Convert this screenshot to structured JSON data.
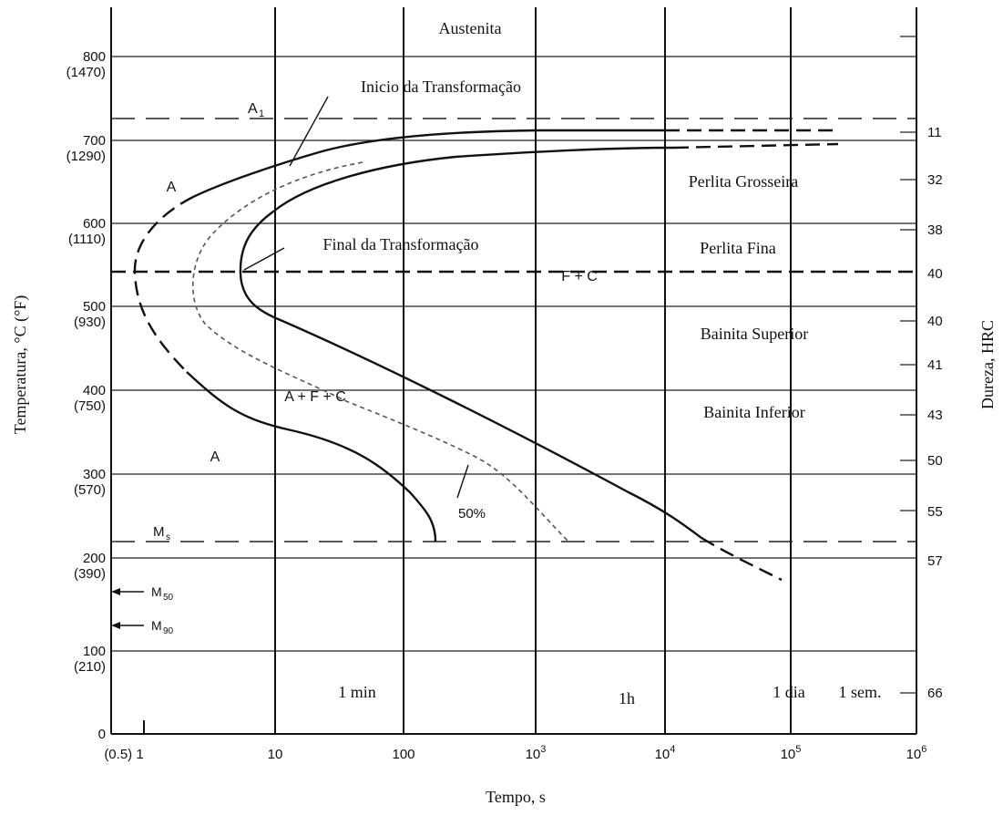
{
  "regions": {
    "austenite_top": "Austenita",
    "a_upper": "A",
    "a_lower": "A",
    "a_f_c": "A + F + C",
    "f_c": "F + C",
    "percent_50": "50%",
    "start_transformation": "Inicio da Transformação",
    "end_transformation": "Final da Transformação",
    "coarse_pearlite": "Perlita Grosseira",
    "fine_pearlite": "Perlita Fina",
    "upper_bainite": "Bainita Superior",
    "lower_bainite": "Bainita Inferior"
  },
  "critical_lines": {
    "a1_main": "A",
    "a1_sub": "1",
    "ms_main": "M",
    "ms_sub": "s",
    "m50_main": "M",
    "m50_sub": "50",
    "m90_main": "M",
    "m90_sub": "90"
  },
  "time_markers": {
    "minute": "1 min",
    "hour": "1h",
    "day": "1 dia",
    "week": "1 sem."
  },
  "axes": {
    "x_title": "Tempo, s",
    "y_left_title": "Temperatura, °C (°F)",
    "y_right_title": "Dureza, HRC",
    "x_ticks": [
      {
        "base": "(0.5) 1",
        "exp": ""
      },
      {
        "base": "10",
        "exp": ""
      },
      {
        "base": "100",
        "exp": ""
      },
      {
        "base": "10",
        "exp": "3"
      },
      {
        "base": "10",
        "exp": "4"
      },
      {
        "base": "10",
        "exp": "5"
      },
      {
        "base": "10",
        "exp": "6"
      }
    ],
    "y_ticks": [
      {
        "c": "800",
        "f": "(1470)"
      },
      {
        "c": "700",
        "f": "(1290)"
      },
      {
        "c": "600",
        "f": "(1110)"
      },
      {
        "c": "500",
        "f": "(930)"
      },
      {
        "c": "400",
        "f": "(750)"
      },
      {
        "c": "300",
        "f": "(570)"
      },
      {
        "c": "200",
        "f": "(390)"
      },
      {
        "c": "100",
        "f": "(210)"
      },
      {
        "c": "0",
        "f": ""
      }
    ],
    "hrc_ticks": [
      "11",
      "32",
      "38",
      "40",
      "40",
      "41",
      "43",
      "50",
      "55",
      "57",
      "66"
    ]
  },
  "colors": {
    "ink": "#111111",
    "grid": "#222222",
    "dotted": "#555555",
    "background": "#ffffff"
  }
}
